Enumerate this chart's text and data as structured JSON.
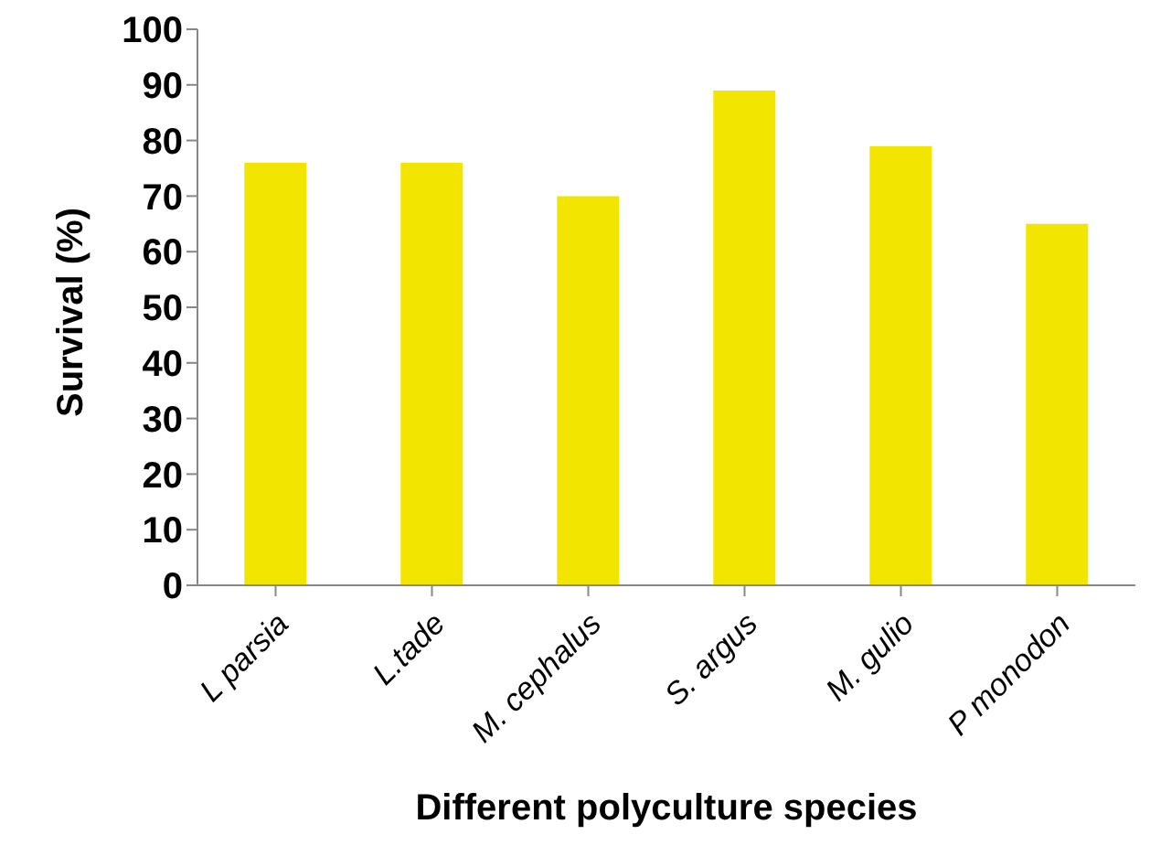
{
  "chart_data": {
    "type": "bar",
    "xlabel": "Different polyculture species",
    "ylabel": "Survival (%)",
    "categories": [
      "L parsia",
      "L.tade",
      "M. cephalus",
      "S. argus",
      "M. gulio",
      "P monodon"
    ],
    "values": [
      76,
      76,
      70,
      89,
      79,
      65
    ],
    "color": "#f2e600",
    "ylim": [
      0,
      100
    ],
    "yticks": [
      0,
      10,
      20,
      30,
      40,
      50,
      60,
      70,
      80,
      90,
      100
    ],
    "grid": false,
    "legend": false
  }
}
